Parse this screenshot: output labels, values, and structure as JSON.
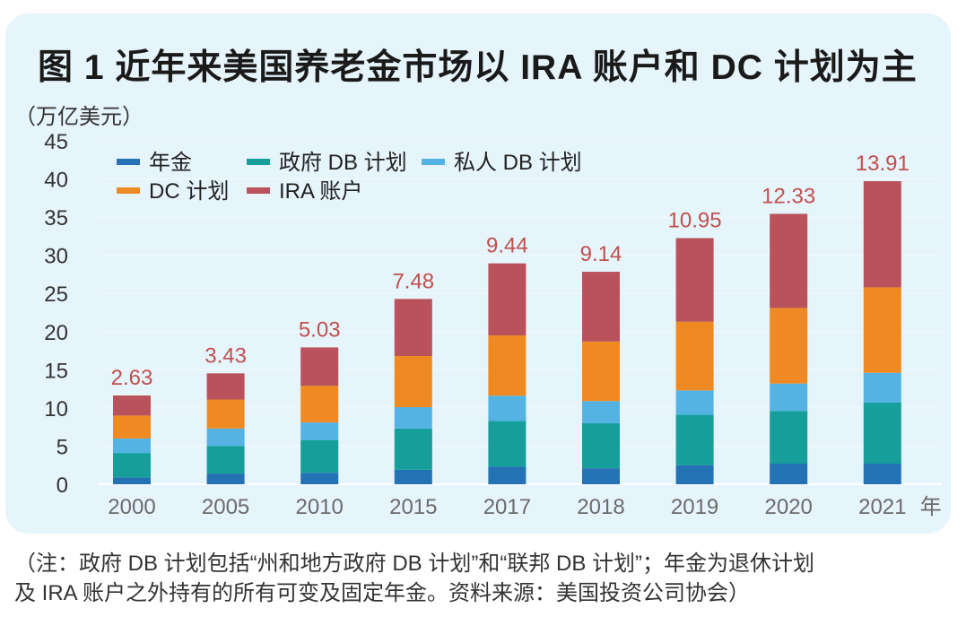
{
  "figure": {
    "title": "图 1  近年来美国养老金市场以 IRA 账户和 DC 计划为主",
    "unit_label": "（万亿美元）",
    "footnote_line1": "（注：政府 DB 计划包括“州和地方政府 DB 计划”和“联邦 DB 计划”；年金为退休计划",
    "footnote_line2": "及 IRA 账户之外持有的所有可变及固定年金。资料来源：美国投资公司协会）"
  },
  "chart_data": {
    "type": "bar",
    "stacked": true,
    "title": "图 1  近年来美国养老金市场以 IRA 账户和 DC 计划为主",
    "xlabel": "年",
    "ylabel": "（万亿美元）",
    "ylim": [
      0,
      45
    ],
    "yticks": [
      0,
      5,
      10,
      15,
      20,
      25,
      30,
      35,
      40,
      45
    ],
    "grid": true,
    "legend_position": "top-left",
    "categories": [
      "2000",
      "2005",
      "2010",
      "2015",
      "2017",
      "2018",
      "2019",
      "2020",
      "2021"
    ],
    "x_unit_suffix": "年",
    "series": [
      {
        "name": "年金",
        "color": "#2272b4",
        "values": [
          0.9,
          1.4,
          1.5,
          1.9,
          2.3,
          2.1,
          2.5,
          2.7,
          2.7
        ]
      },
      {
        "name": "政府 DB 计划",
        "color": "#159e9a",
        "values": [
          3.2,
          3.6,
          4.3,
          5.4,
          6.0,
          5.9,
          6.6,
          6.9,
          8.0
        ]
      },
      {
        "name": "私人 DB 计划",
        "color": "#55b3e3",
        "values": [
          1.9,
          2.3,
          2.3,
          2.8,
          3.3,
          2.9,
          3.2,
          3.6,
          3.9
        ]
      },
      {
        "name": "DC 计划",
        "color": "#ef8a23",
        "values": [
          3.0,
          3.8,
          4.8,
          6.7,
          7.9,
          7.8,
          9.0,
          9.9,
          11.2
        ]
      },
      {
        "name": "IRA 账户",
        "color": "#b9525a",
        "values": [
          2.63,
          3.43,
          5.03,
          7.48,
          9.44,
          9.14,
          10.95,
          12.33,
          13.91
        ]
      }
    ],
    "data_labels": [
      "2.63",
      "3.43",
      "5.03",
      "7.48",
      "9.44",
      "9.14",
      "10.95",
      "12.33",
      "13.91"
    ],
    "data_label_series": "IRA 账户",
    "data_label_color": "#c0504d"
  }
}
